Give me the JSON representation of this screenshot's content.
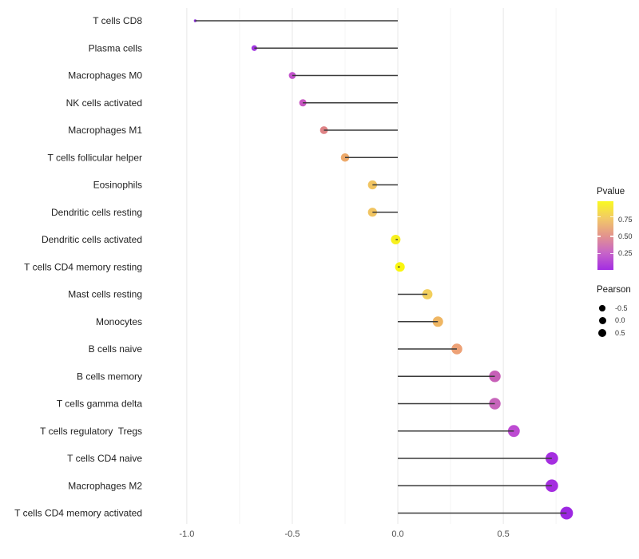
{
  "chart_data": {
    "type": "lollipop",
    "orientation": "horizontal",
    "title": "",
    "xlabel": "",
    "ylabel": "",
    "grid": "vertical-only",
    "x_axis": {
      "range": [
        -1.185,
        0.81
      ],
      "baseline": 0.0,
      "major_ticks": [
        -1.0,
        -0.5,
        0.0,
        0.5
      ],
      "major_tick_labels": [
        "-1.0",
        "-0.5",
        "0.0",
        "0.5"
      ],
      "minor_ticks": [
        -0.75,
        -0.25,
        0.25,
        0.75
      ]
    },
    "encoding": {
      "x": "Pearson correlation",
      "color": "Pvalue",
      "size": "Pearson"
    },
    "points": [
      {
        "label": "T cells CD8",
        "pearson": -0.96,
        "color": "#8b2fd6"
      },
      {
        "label": "Plasma cells",
        "pearson": -0.68,
        "color": "#a137e0"
      },
      {
        "label": "Macrophages M0",
        "pearson": -0.5,
        "color": "#c252cc"
      },
      {
        "label": "NK cells activated",
        "pearson": -0.45,
        "color": "#c857c2"
      },
      {
        "label": "Macrophages M1",
        "pearson": -0.35,
        "color": "#de8285"
      },
      {
        "label": "T cells follicular helper",
        "pearson": -0.25,
        "color": "#eda96a"
      },
      {
        "label": "Eosinophils",
        "pearson": -0.12,
        "color": "#f1c461"
      },
      {
        "label": "Dendritic cells resting",
        "pearson": -0.12,
        "color": "#f1c461"
      },
      {
        "label": "Dendritic cells activated",
        "pearson": -0.01,
        "color": "#f7f01e"
      },
      {
        "label": "T cells CD4 memory resting",
        "pearson": 0.01,
        "color": "#faf60f"
      },
      {
        "label": "Mast cells resting",
        "pearson": 0.14,
        "color": "#f2cf5d"
      },
      {
        "label": "Monocytes",
        "pearson": 0.19,
        "color": "#efb663"
      },
      {
        "label": "B cells naive",
        "pearson": 0.28,
        "color": "#eda176"
      },
      {
        "label": "B cells memory",
        "pearson": 0.46,
        "color": "#c75fb7"
      },
      {
        "label": "T cells gamma delta",
        "pearson": 0.46,
        "color": "#c765bb"
      },
      {
        "label": "T cells regulatory  Tregs",
        "pearson": 0.55,
        "color": "#bd4bd2"
      },
      {
        "label": "T cells CD4 naive",
        "pearson": 0.73,
        "color": "#a52ee0"
      },
      {
        "label": "Macrophages M2",
        "pearson": 0.73,
        "color": "#a52ee0"
      },
      {
        "label": "T cells CD4 memory activated",
        "pearson": 0.8,
        "color": "#9d27e2"
      }
    ]
  },
  "legends": {
    "pvalue": {
      "title": "Pvalue",
      "ticks": [
        "0.75",
        "0.50",
        "0.25"
      ],
      "gradient_top_to_bottom": [
        "#f9f921",
        "#f2c967",
        "#e3948d",
        "#c765c8",
        "#a32de2"
      ]
    },
    "pearson": {
      "title": "Pearson",
      "entries": [
        "-0.5",
        "0.0",
        "0.5"
      ],
      "dot_color": "#000000"
    }
  },
  "colors": {
    "background": "#ffffff",
    "grid_major": "#e7e7e7",
    "grid_minor": "#f4f4f4",
    "stem": "#3a3a3a",
    "axis_text": "#4d4d4d",
    "label_text": "#1f1f1f"
  }
}
